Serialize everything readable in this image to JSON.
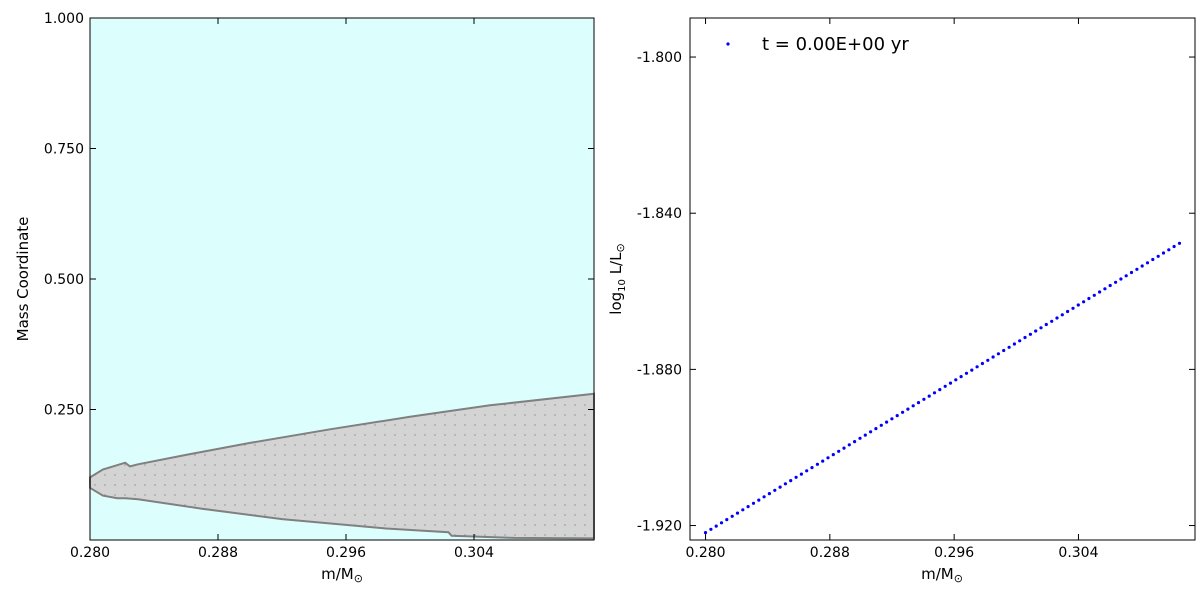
{
  "chart_data": [
    {
      "type": "area",
      "xlabel": "m/M",
      "xlabel_symbol": "⊙",
      "ylabel": "Mass Coordinate",
      "xlim": [
        0.28,
        0.3115
      ],
      "ylim": [
        0.0,
        1.0
      ],
      "x_ticks": [
        {
          "value": 0.28,
          "label": "0.280"
        },
        {
          "value": 0.288,
          "label": "0.288"
        },
        {
          "value": 0.296,
          "label": "0.296"
        },
        {
          "value": 0.304,
          "label": "0.304"
        }
      ],
      "y_ticks": [
        {
          "value": 0.25,
          "label": "0.250"
        },
        {
          "value": 0.5,
          "label": "0.500"
        },
        {
          "value": 0.75,
          "label": "0.750"
        },
        {
          "value": 1.0,
          "label": "1.000"
        }
      ],
      "background_region": {
        "name": "radiative",
        "color": "#dcfffe"
      },
      "convective_region": {
        "name": "convective",
        "fill_color": "#d4d4d4",
        "edge_color": "#808080",
        "dot_color": "#8a8a8a",
        "upper_boundary": [
          {
            "x": 0.28,
            "y": 0.12
          },
          {
            "x": 0.2808,
            "y": 0.135
          },
          {
            "x": 0.2822,
            "y": 0.148
          },
          {
            "x": 0.2825,
            "y": 0.141
          },
          {
            "x": 0.283,
            "y": 0.145
          },
          {
            "x": 0.286,
            "y": 0.163
          },
          {
            "x": 0.29,
            "y": 0.186
          },
          {
            "x": 0.295,
            "y": 0.212
          },
          {
            "x": 0.3,
            "y": 0.236
          },
          {
            "x": 0.305,
            "y": 0.258
          },
          {
            "x": 0.3115,
            "y": 0.28
          }
        ],
        "lower_boundary": [
          {
            "x": 0.28,
            "y": 0.1
          },
          {
            "x": 0.2808,
            "y": 0.085
          },
          {
            "x": 0.2817,
            "y": 0.08
          },
          {
            "x": 0.2822,
            "y": 0.08
          },
          {
            "x": 0.283,
            "y": 0.078
          },
          {
            "x": 0.287,
            "y": 0.06
          },
          {
            "x": 0.292,
            "y": 0.04
          },
          {
            "x": 0.2985,
            "y": 0.022
          },
          {
            "x": 0.3024,
            "y": 0.015
          },
          {
            "x": 0.3026,
            "y": 0.008
          },
          {
            "x": 0.3065,
            "y": 0.004
          },
          {
            "x": 0.3115,
            "y": 0.003
          }
        ]
      }
    },
    {
      "type": "scatter",
      "xlabel": "m/M",
      "xlabel_symbol": "⊙",
      "ylabel_prefix": "log",
      "ylabel_sub": "10",
      "ylabel_main": " L/L",
      "ylabel_symbol": "⊙",
      "xlim": [
        0.279,
        0.3115
      ],
      "ylim": [
        -1.9237,
        -1.79
      ],
      "x_ticks": [
        {
          "value": 0.28,
          "label": "0.280"
        },
        {
          "value": 0.288,
          "label": "0.288"
        },
        {
          "value": 0.296,
          "label": "0.296"
        },
        {
          "value": 0.304,
          "label": "0.304"
        }
      ],
      "y_ticks": [
        {
          "value": -1.92,
          "label": "-1.920"
        },
        {
          "value": -1.88,
          "label": "-1.880"
        },
        {
          "value": -1.84,
          "label": "-1.840"
        },
        {
          "value": -1.8,
          "label": "-1.800"
        }
      ],
      "series": [
        {
          "name": "t = 0.00E+00 yr",
          "color": "#0000ff",
          "x_start": 0.28,
          "x_end": 0.3105,
          "y_start": -1.9218,
          "y_end": -1.8477,
          "n_points": 90
        }
      ],
      "legend_position": "top-left"
    }
  ]
}
